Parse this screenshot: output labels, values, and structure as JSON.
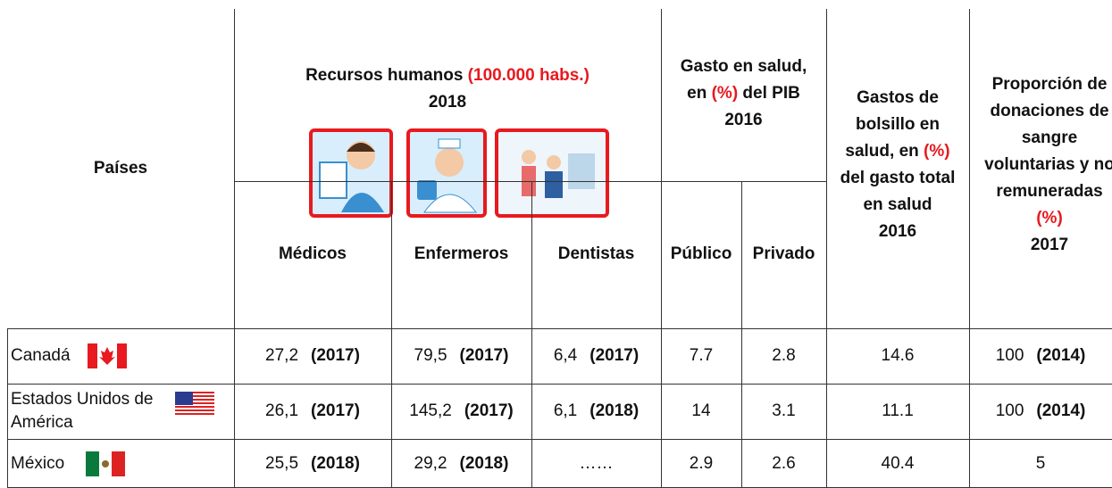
{
  "header": [
    {
      "lines": [
        [
          "Países"
        ]
      ]
    },
    {
      "lines": [
        [
          "Recursos humanos ",
          {
            "text": "(100.000 habs.)",
            "color": "#e8191f"
          }
        ],
        [
          "2018"
        ]
      ]
    },
    {
      "lines": [
        [
          "Gasto en salud,"
        ],
        [
          "en ",
          {
            "text": "(%)",
            "color": "#e8191f"
          },
          " del PIB"
        ],
        [
          "2016"
        ]
      ]
    },
    {
      "lines": [
        [
          "Gastos de"
        ],
        [
          "bolsillo en"
        ],
        [
          "salud, en ",
          {
            "text": "(%)",
            "color": "#e8191f"
          }
        ],
        [
          "del gasto total"
        ],
        [
          "en salud"
        ],
        [
          "2016"
        ]
      ]
    },
    {
      "lines": [
        [
          "Proporción de"
        ],
        [
          "donaciones de"
        ],
        [
          "sangre"
        ],
        [
          "voluntarias y no"
        ],
        [
          "remuneradas"
        ],
        [
          {
            "text": "(%)",
            "color": "#e8191f"
          }
        ],
        [
          "2017"
        ]
      ]
    }
  ],
  "subheader": [
    "Médicos",
    "Enfermeros",
    "Dentistas",
    "Público",
    "Privado"
  ],
  "rows": [
    {
      "country": [
        "Canadá"
      ],
      "flag": "ca",
      "cells": [
        {
          "value": "27,2",
          "year": "(2017)"
        },
        {
          "value": "79,5",
          "year": "(2017)"
        },
        {
          "value": "6,4",
          "year": "(2017)"
        },
        "7.7",
        "2.8",
        "14.6",
        {
          "value": "100",
          "year": "(2014)"
        }
      ]
    },
    {
      "country": [
        "Estados Unidos de",
        "América"
      ],
      "flag": "us",
      "cells": [
        {
          "value": "26,1",
          "year": "(2017)"
        },
        {
          "value": "145,2",
          "year": "(2017)"
        },
        {
          "value": "6,1",
          "year": "(2018)"
        },
        "14",
        "3.1",
        "11.1",
        {
          "value": "100",
          "year": "(2014)"
        }
      ]
    },
    {
      "country": [
        "México"
      ],
      "flag": "mx",
      "cells": [
        {
          "value": "25,5",
          "year": "(2018)"
        },
        {
          "value": "29,2",
          "year": "(2018)"
        },
        "……",
        "2.9",
        "2.6",
        "40.4",
        "5"
      ]
    }
  ]
}
